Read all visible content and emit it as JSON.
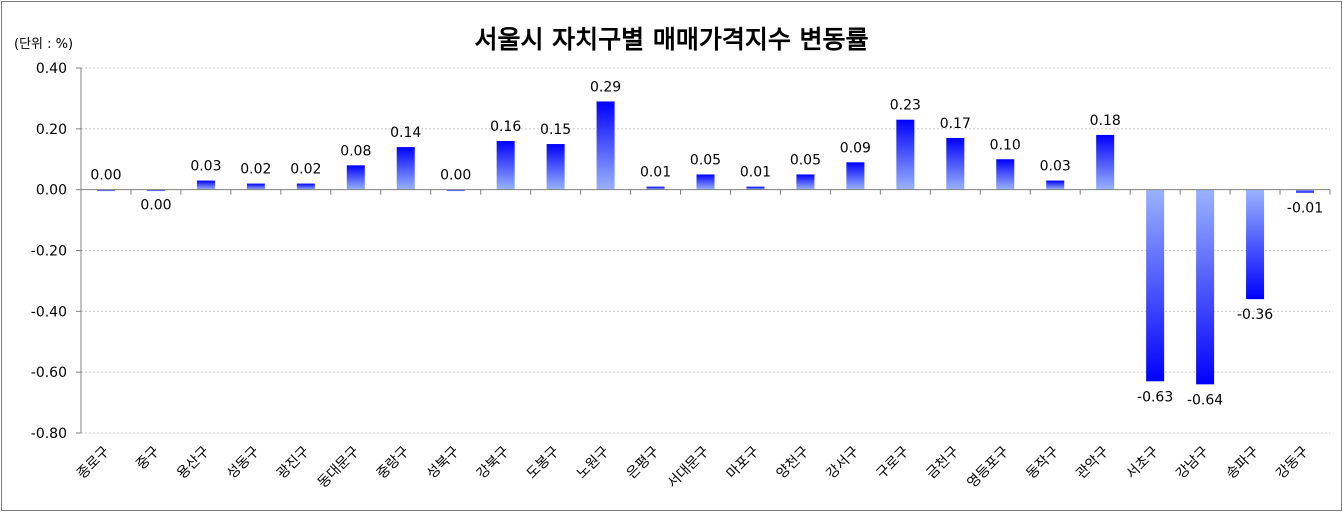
{
  "chart_data": {
    "type": "bar",
    "title": "서울시 자치구별 매매가격지수 변동률",
    "unit_label": "(단위 : %)",
    "categories": [
      "종로구",
      "중구",
      "용산구",
      "성동구",
      "광진구",
      "동대문구",
      "중랑구",
      "성북구",
      "강북구",
      "도봉구",
      "노원구",
      "은평구",
      "서대문구",
      "마포구",
      "양천구",
      "강서구",
      "구로구",
      "금천구",
      "영등포구",
      "동작구",
      "관악구",
      "서초구",
      "강남구",
      "송파구",
      "강동구"
    ],
    "values": [
      0.0,
      0.0,
      0.03,
      0.02,
      0.02,
      0.08,
      0.14,
      0.0,
      0.16,
      0.15,
      0.29,
      0.01,
      0.05,
      0.01,
      0.05,
      0.09,
      0.23,
      0.17,
      0.1,
      0.03,
      0.18,
      -0.63,
      -0.64,
      -0.36,
      -0.01
    ],
    "value_labels": [
      "0.00",
      "0.00",
      "0.03",
      "0.02",
      "0.02",
      "0.08",
      "0.14",
      "0.00",
      "0.16",
      "0.15",
      "0.29",
      "0.01",
      "0.05",
      "0.01",
      "0.05",
      "0.09",
      "0.23",
      "0.17",
      "0.10",
      "0.03",
      "0.18",
      "-0.63",
      "-0.64",
      "-0.36",
      "-0.01"
    ],
    "ylim": [
      -0.8,
      0.4
    ],
    "yticks": [
      0.4,
      0.2,
      0.0,
      -0.2,
      -0.4,
      -0.6,
      -0.8
    ],
    "ytick_labels": [
      "0.40",
      "0.20",
      "0.00",
      "-0.20",
      "-0.40",
      "-0.60",
      "-0.80"
    ],
    "grid": true,
    "colors": {
      "bar_dark": "#0000ff",
      "bar_light": "#99b3ff",
      "grid": "#c8c8c8",
      "axis": "#808080"
    }
  }
}
